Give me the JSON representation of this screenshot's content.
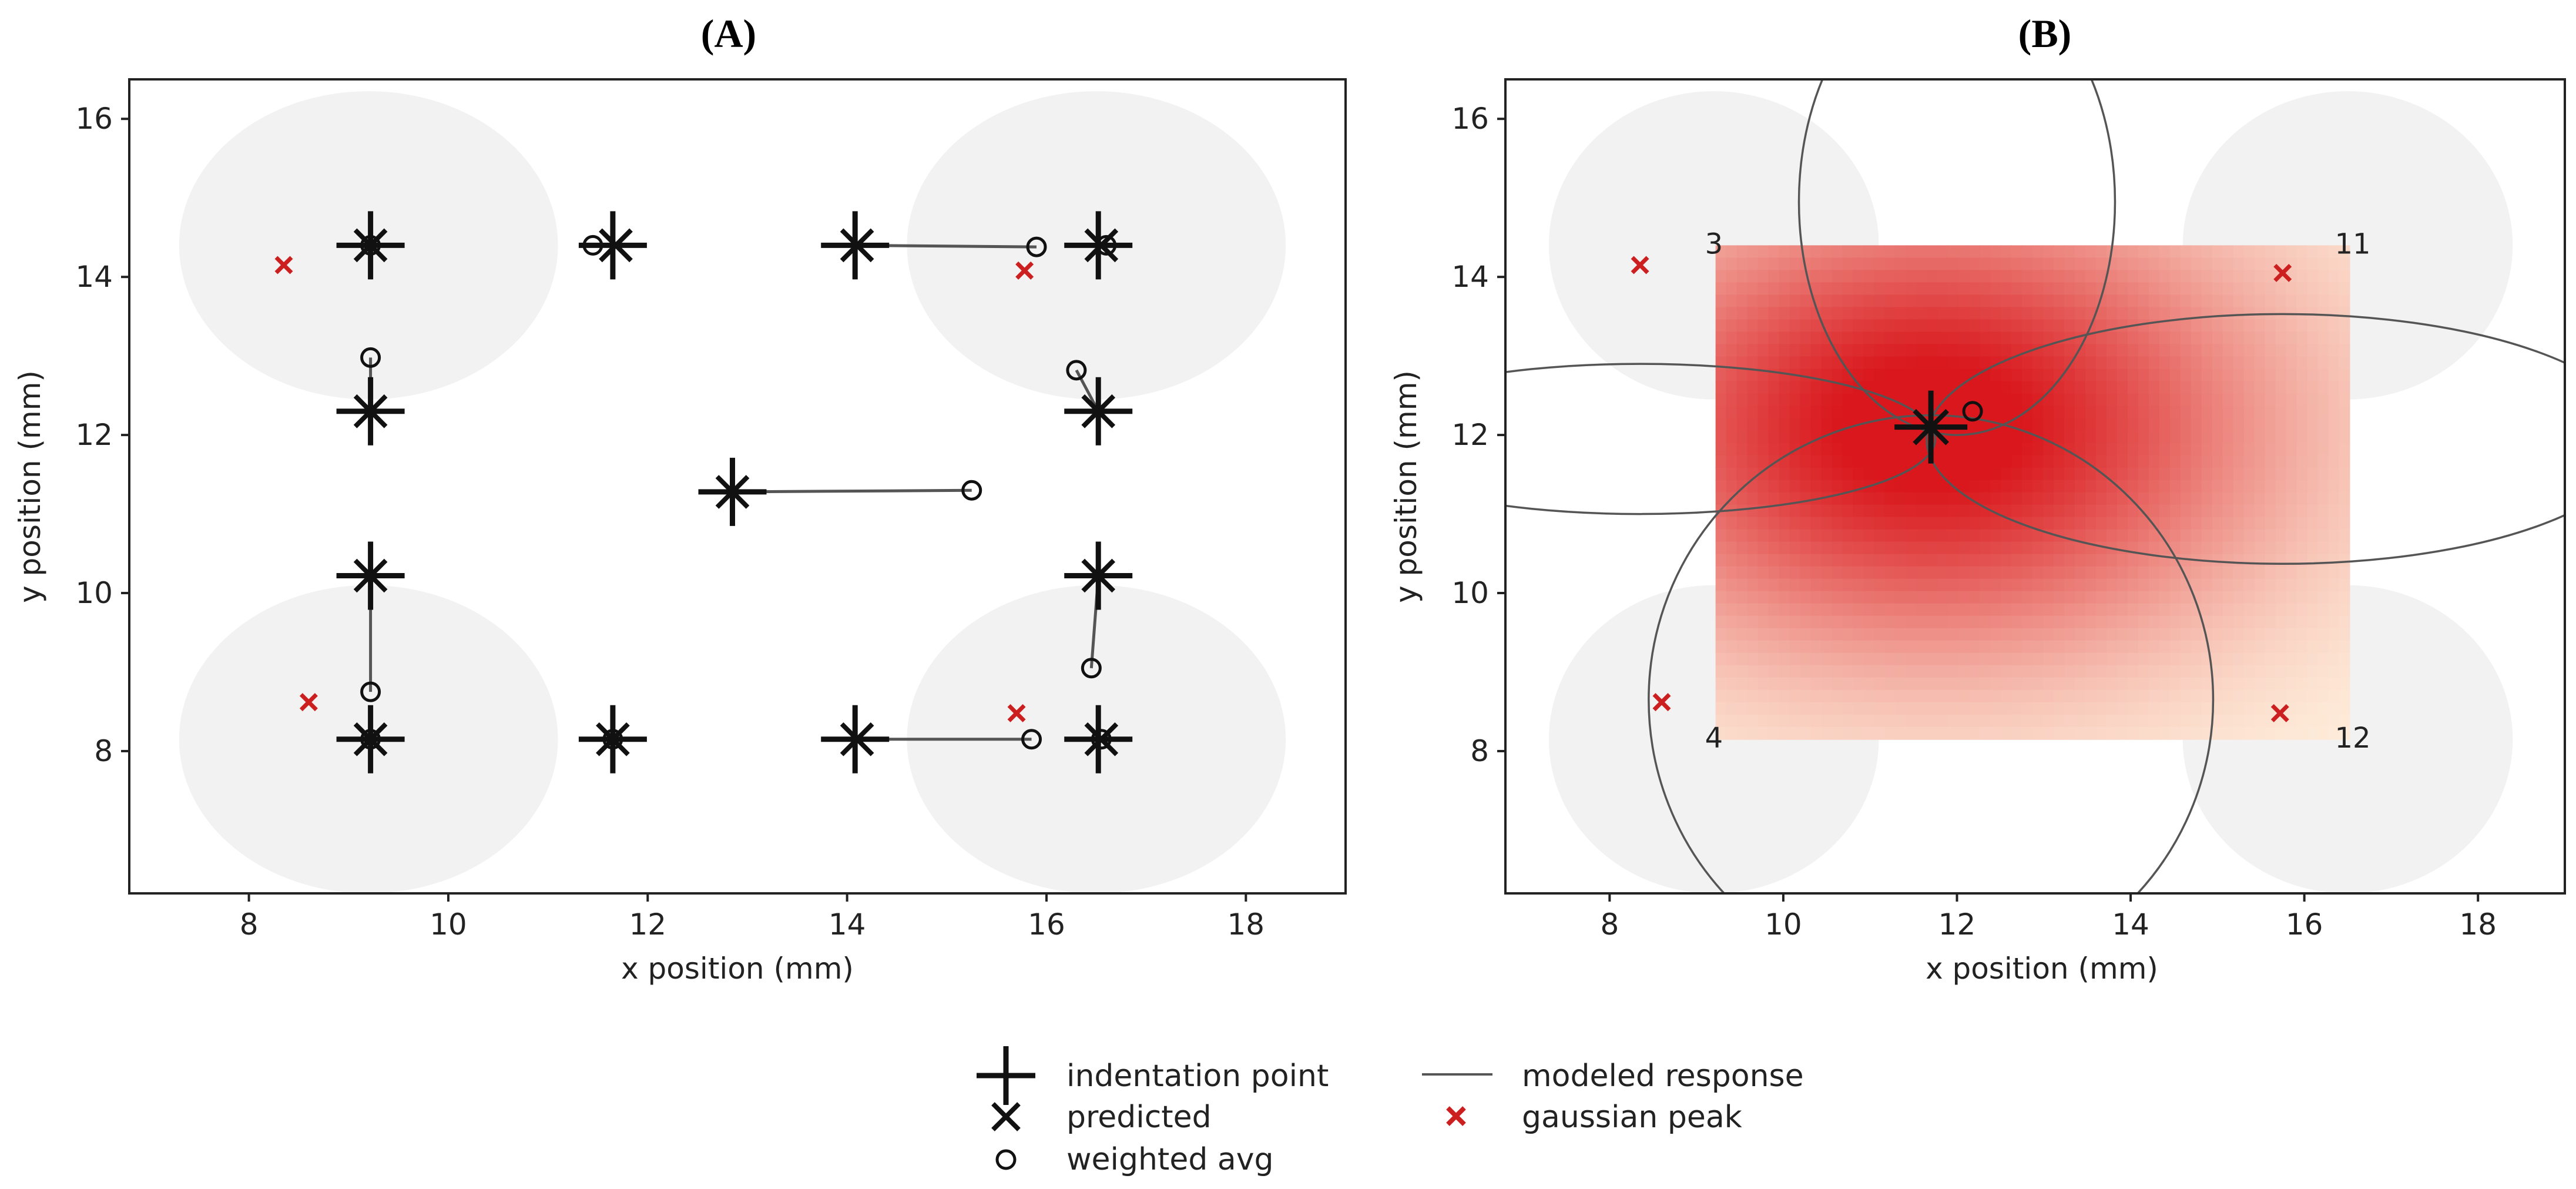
{
  "chart_data": [
    {
      "panel": "(A)",
      "type": "scatter",
      "xlabel": "x position (mm)",
      "ylabel": "y position (mm)",
      "xlim": [
        6.8,
        19.0
      ],
      "ylim": [
        6.2,
        16.5
      ],
      "xticks": [
        8,
        10,
        12,
        14,
        16,
        18
      ],
      "yticks": [
        8,
        10,
        12,
        14,
        16
      ],
      "sensor_regions": [
        {
          "cx": 9.2,
          "cy": 14.4,
          "rx": 1.9,
          "ry": 1.95
        },
        {
          "cx": 16.5,
          "cy": 14.4,
          "rx": 1.9,
          "ry": 1.95
        },
        {
          "cx": 9.2,
          "cy": 8.15,
          "rx": 1.9,
          "ry": 1.95
        },
        {
          "cx": 16.5,
          "cy": 8.15,
          "rx": 1.9,
          "ry": 1.95
        }
      ],
      "indentation_points": [
        {
          "x": 9.22,
          "y": 14.4
        },
        {
          "x": 11.65,
          "y": 14.4
        },
        {
          "x": 14.08,
          "y": 14.4
        },
        {
          "x": 16.52,
          "y": 14.4
        },
        {
          "x": 9.22,
          "y": 12.3
        },
        {
          "x": 16.52,
          "y": 12.3
        },
        {
          "x": 12.85,
          "y": 11.28
        },
        {
          "x": 9.22,
          "y": 10.22
        },
        {
          "x": 16.52,
          "y": 10.22
        },
        {
          "x": 9.22,
          "y": 8.15
        },
        {
          "x": 11.65,
          "y": 8.15
        },
        {
          "x": 14.08,
          "y": 8.15
        },
        {
          "x": 16.52,
          "y": 8.15
        }
      ],
      "predicted": [
        {
          "x": 9.22,
          "y": 14.4
        },
        {
          "x": 11.68,
          "y": 14.4
        },
        {
          "x": 14.1,
          "y": 14.4
        },
        {
          "x": 16.55,
          "y": 14.4
        },
        {
          "x": 9.22,
          "y": 12.3
        },
        {
          "x": 16.52,
          "y": 12.3
        },
        {
          "x": 12.85,
          "y": 11.28
        },
        {
          "x": 9.22,
          "y": 10.22
        },
        {
          "x": 16.52,
          "y": 10.22
        },
        {
          "x": 9.22,
          "y": 8.15
        },
        {
          "x": 11.65,
          "y": 8.15
        },
        {
          "x": 14.1,
          "y": 8.15
        },
        {
          "x": 16.55,
          "y": 8.15
        }
      ],
      "weighted_avg": [
        {
          "x": 9.22,
          "y": 14.4
        },
        {
          "x": 11.45,
          "y": 14.4
        },
        {
          "x": 15.9,
          "y": 14.38
        },
        {
          "x": 16.6,
          "y": 14.4
        },
        {
          "x": 9.22,
          "y": 12.98
        },
        {
          "x": 16.3,
          "y": 12.82
        },
        {
          "x": 15.25,
          "y": 11.3
        },
        {
          "x": 9.22,
          "y": 8.75
        },
        {
          "x": 16.45,
          "y": 9.05
        },
        {
          "x": 9.22,
          "y": 8.15
        },
        {
          "x": 11.65,
          "y": 8.15
        },
        {
          "x": 15.85,
          "y": 8.15
        },
        {
          "x": 16.55,
          "y": 8.15
        }
      ],
      "gaussian_peaks": [
        {
          "x": 8.35,
          "y": 14.15
        },
        {
          "x": 15.78,
          "y": 14.08
        },
        {
          "x": 8.6,
          "y": 8.62
        },
        {
          "x": 15.7,
          "y": 8.48
        }
      ]
    },
    {
      "panel": "(B)",
      "type": "heatmap",
      "xlabel": "x position (mm)",
      "ylabel": "y position (mm)",
      "xlim": [
        6.8,
        19.0
      ],
      "ylim": [
        6.2,
        16.5
      ],
      "xticks": [
        8,
        10,
        12,
        14,
        16,
        18
      ],
      "yticks": [
        8,
        10,
        12,
        14,
        16
      ],
      "heatmap_extent": {
        "x": [
          9.22,
          16.52
        ],
        "y": [
          8.15,
          14.4
        ]
      },
      "heatmap_peak": {
        "x": 11.7,
        "y": 12.1
      },
      "sensor_regions": [
        {
          "cx": 9.2,
          "cy": 14.4,
          "rx": 1.9,
          "ry": 1.95,
          "label": "3"
        },
        {
          "cx": 16.5,
          "cy": 14.4,
          "rx": 1.9,
          "ry": 1.95,
          "label": "11"
        },
        {
          "cx": 9.2,
          "cy": 8.15,
          "rx": 1.9,
          "ry": 1.95,
          "label": "4"
        },
        {
          "cx": 16.5,
          "cy": 8.15,
          "rx": 1.9,
          "ry": 1.95,
          "label": "12"
        }
      ],
      "modeled_response_circles": [
        {
          "cx": 12.0,
          "cy": 14.95,
          "rx": 1.82,
          "ry": 2.95
        },
        {
          "cx": 8.35,
          "cy": 11.95,
          "rx": 3.4,
          "ry": 0.95
        },
        {
          "cx": 15.75,
          "cy": 11.95,
          "rx": 4.1,
          "ry": 1.58
        },
        {
          "cx": 11.7,
          "cy": 8.65,
          "rx": 3.25,
          "ry": 3.6
        }
      ],
      "indentation_point": {
        "x": 11.7,
        "y": 12.1
      },
      "predicted": {
        "x": 11.7,
        "y": 12.1
      },
      "weighted_avg": {
        "x": 12.18,
        "y": 12.3
      },
      "gaussian_peaks": [
        {
          "x": 8.35,
          "y": 14.15
        },
        {
          "x": 15.75,
          "y": 14.05
        },
        {
          "x": 8.6,
          "y": 8.62
        },
        {
          "x": 15.72,
          "y": 8.48
        }
      ]
    }
  ],
  "legend": {
    "indentation_point": "indentation point",
    "predicted": "predicted",
    "weighted_avg": "weighted avg",
    "modeled_response": "modeled response",
    "gaussian_peak": "gaussian peak"
  },
  "colors": {
    "sensor_region": "#f2f2f2",
    "gaussian_peak": "#cc1f1f",
    "marker": "#111111",
    "line": "#555555",
    "heat_low": "#fff2df",
    "heat_high": "#d9171c"
  }
}
